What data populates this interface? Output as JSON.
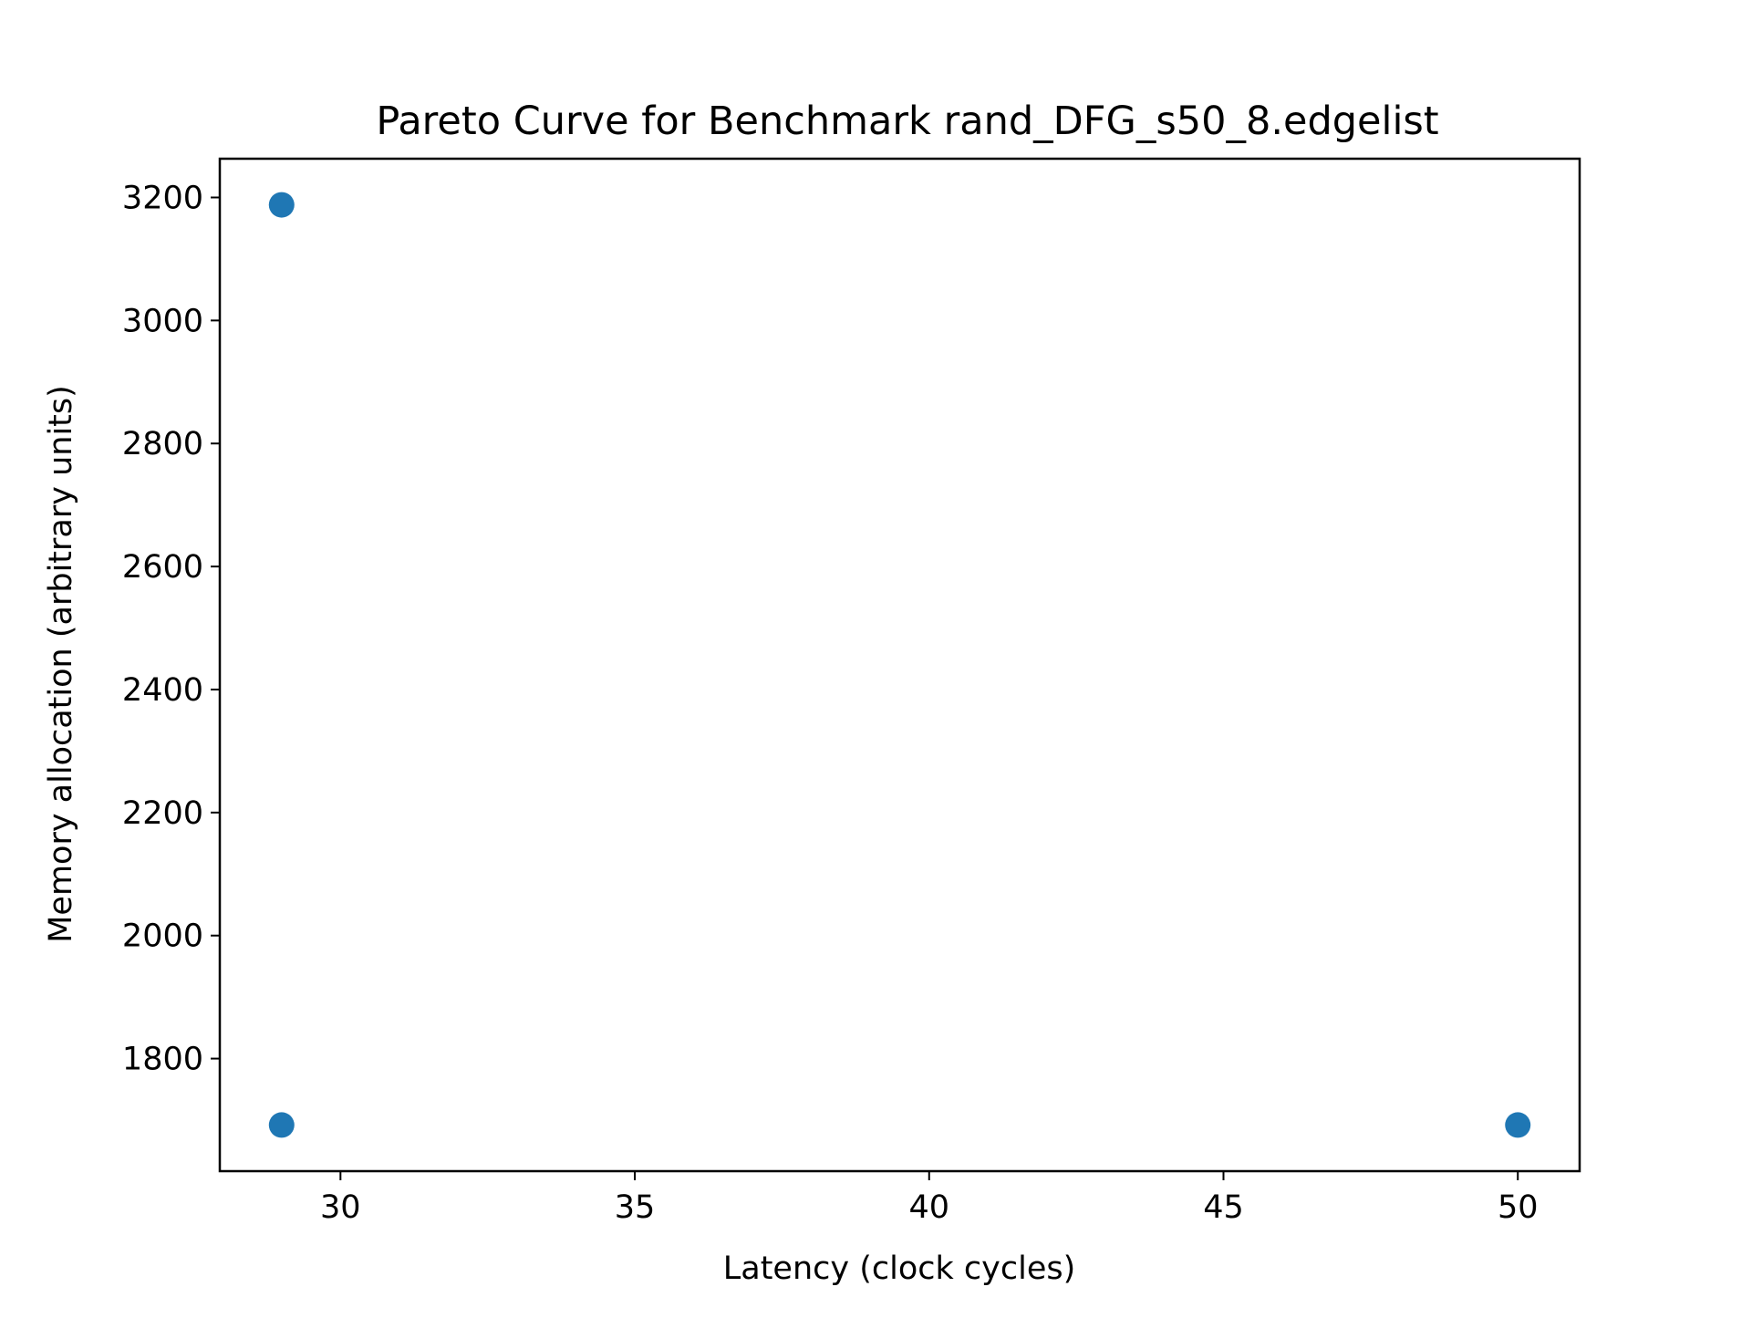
{
  "chart_data": {
    "type": "scatter",
    "title": "Pareto Curve for Benchmark rand_DFG_s50_8.edgelist",
    "xlabel": "Latency (clock cycles)",
    "ylabel": "Memory allocation (arbitrary units)",
    "xlim": [
      27.95,
      51.05
    ],
    "ylim": [
      1617,
      3263
    ],
    "xticks": [
      30,
      35,
      40,
      45,
      50
    ],
    "xtick_labels": [
      "30",
      "35",
      "40",
      "45",
      "50"
    ],
    "yticks": [
      1800,
      2000,
      2200,
      2400,
      2600,
      2800,
      3000,
      3200
    ],
    "ytick_labels": [
      "1800",
      "2000",
      "2200",
      "2400",
      "2600",
      "2800",
      "3000",
      "3200"
    ],
    "series": [
      {
        "color": "#1f77b4",
        "points": [
          {
            "x": 29,
            "y": 3188
          },
          {
            "x": 29,
            "y": 1692
          },
          {
            "x": 50,
            "y": 1692
          }
        ]
      }
    ],
    "grid": false,
    "legend": "none"
  }
}
